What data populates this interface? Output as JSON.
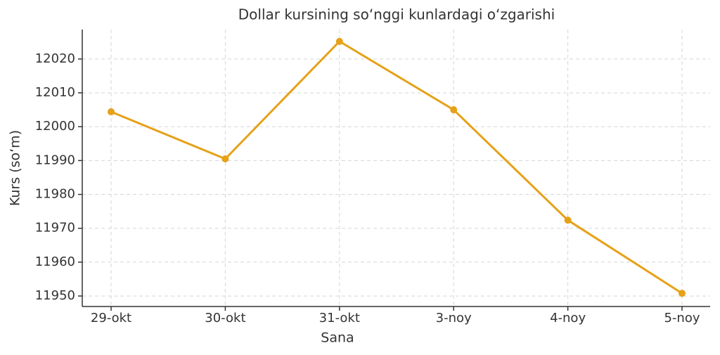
{
  "chart_data": {
    "type": "line",
    "title": "Dollar kursining so‘nggi kunlardagi o‘zgarishi",
    "x_label": "Sana",
    "y_label": "Kurs (so‘m)",
    "categories": [
      "29-okt",
      "30-okt",
      "31-okt",
      "3-noy",
      "4-noy",
      "5-noy"
    ],
    "series": [
      {
        "name": "Kurs",
        "color": "#e6a117",
        "values": [
          12004.4,
          11990.5,
          12025.2,
          12005.0,
          11972.4,
          11950.8
        ]
      }
    ],
    "ylim": [
      11946.9,
      12028.7
    ],
    "yticks": [
      11950,
      11960,
      11970,
      11980,
      11990,
      12000,
      12010,
      12020
    ],
    "grid": true
  }
}
